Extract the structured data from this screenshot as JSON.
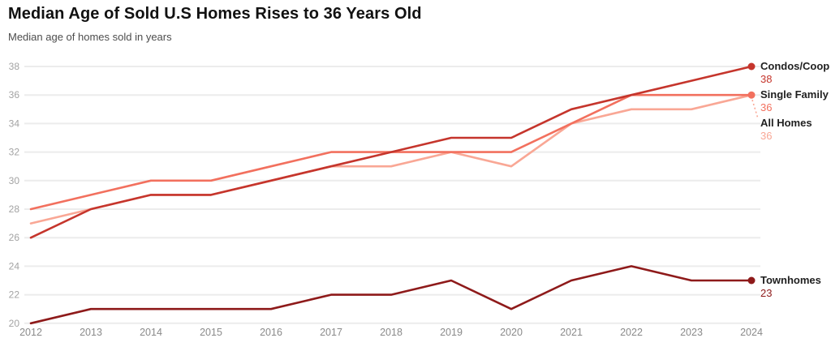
{
  "chart_data": {
    "type": "line",
    "title": "Median Age of Sold U.S Homes Rises to 36 Years Old",
    "subtitle": "Median age of homes sold in years",
    "x": [
      2012,
      2013,
      2014,
      2015,
      2016,
      2017,
      2018,
      2019,
      2020,
      2021,
      2022,
      2023,
      2024
    ],
    "ylim": [
      20,
      38
    ],
    "ytick_step": 2,
    "grid": "horizontal-gridlines-only",
    "legend_position": "right-end-labels",
    "background": "#ffffff",
    "gridline_color": "#ececec",
    "series": [
      {
        "name": "Condos/Coop",
        "values": [
          26,
          28,
          29,
          29,
          30,
          31,
          32,
          33,
          33,
          35,
          36,
          37,
          38
        ],
        "color": "#c5352c",
        "end_label": "Condos/Coop",
        "end_value": "38",
        "label_dy": 0,
        "leader_dashed": false
      },
      {
        "name": "Single Family",
        "values": [
          28,
          29,
          30,
          30,
          31,
          32,
          32,
          32,
          32,
          34,
          36,
          36,
          36
        ],
        "color": "#f2705e",
        "end_label": "Single Family",
        "end_value": "36",
        "label_dy": 0,
        "leader_dashed": false
      },
      {
        "name": "All Homes",
        "values": [
          27,
          28,
          29,
          29,
          30,
          31,
          31,
          32,
          31,
          34,
          35,
          35,
          36
        ],
        "color": "#f9a795",
        "end_label": "All Homes",
        "end_value": "36",
        "label_dy": 35,
        "leader_dashed": true
      },
      {
        "name": "Townhomes",
        "values": [
          20,
          21,
          21,
          21,
          21,
          22,
          22,
          23,
          21,
          23,
          24,
          23,
          23
        ],
        "color": "#8e1a1a",
        "end_label": "Townhomes",
        "end_value": "23",
        "label_dy": 0,
        "leader_dashed": false
      }
    ]
  }
}
